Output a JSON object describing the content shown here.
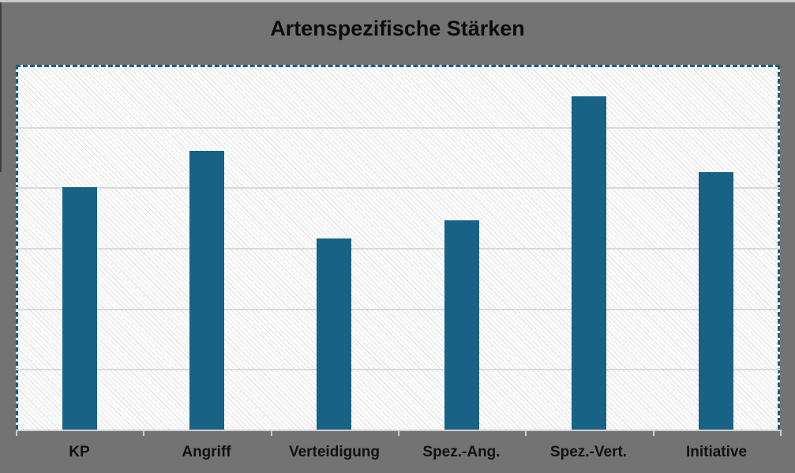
{
  "title": "Artenspezifische Stärken",
  "chart_data": {
    "type": "bar",
    "title": "Artenspezifische Stärken",
    "categories": [
      "KP",
      "Angriff",
      "Verteidigung",
      "Spez.-Ang.",
      "Spez.-Vert.",
      "Initiative"
    ],
    "values": [
      80,
      92,
      63,
      69,
      110,
      85
    ],
    "xlabel": "",
    "ylabel": "",
    "ylim": [
      0,
      120
    ],
    "gridline_interval": 20,
    "grid": "horizontal",
    "legend": "none",
    "y_tick_labels_visible": false,
    "plot_area_selected": true
  },
  "colors": {
    "bar": "#176285",
    "selection_dash": "#155f85",
    "canvas_background": "#737373",
    "plot_hatch_line": "#e4e4e4",
    "gridline": "#d9d9d9",
    "axis_line": "#cfcfcf",
    "title_text": "#0c0c0c",
    "label_text": "#111111"
  }
}
